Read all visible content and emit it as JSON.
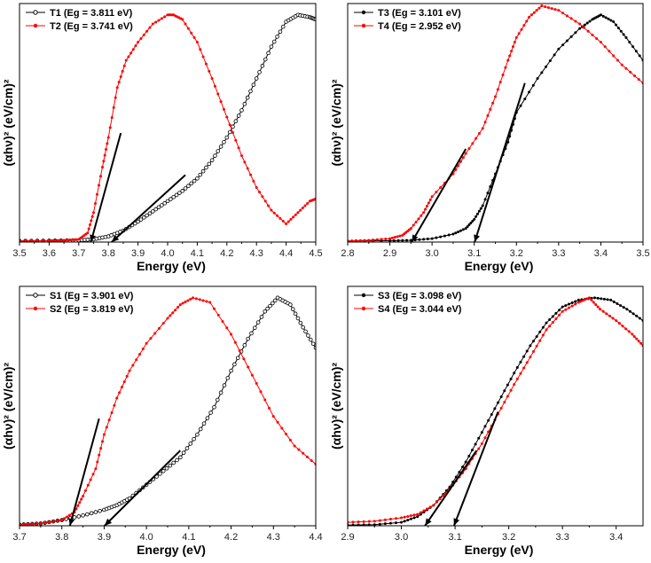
{
  "chart_data": [
    {
      "type": "scatter",
      "xlabel": "Energy (eV)",
      "ylabel": "(αhν)² (eV/cm)²",
      "xlim": [
        3.5,
        4.5
      ],
      "xticks": [
        3.5,
        3.6,
        3.7,
        3.8,
        3.9,
        4.0,
        4.1,
        4.2,
        4.3,
        4.4,
        4.5
      ],
      "xtick_labels": [
        "3.5",
        "3.6",
        "3.7",
        "3.8",
        "3.9",
        "4.0",
        "4.1",
        "4.2",
        "4.3",
        "4.4",
        "4.5"
      ],
      "ylim": [
        0,
        1.05
      ],
      "legend_position": "top-left",
      "series": [
        {
          "name": "T1 (Eg = 3.811 eV)",
          "color": "#000000",
          "marker": "open-circle",
          "x": [
            3.5,
            3.6,
            3.7,
            3.75,
            3.8,
            3.85,
            3.9,
            3.95,
            4.0,
            4.05,
            4.1,
            4.15,
            4.2,
            4.25,
            4.3,
            4.35,
            4.4,
            4.44,
            4.48,
            4.5
          ],
          "y": [
            0.005,
            0.006,
            0.008,
            0.012,
            0.025,
            0.05,
            0.09,
            0.135,
            0.18,
            0.225,
            0.28,
            0.36,
            0.46,
            0.58,
            0.72,
            0.86,
            0.97,
            1.0,
            0.99,
            0.98
          ]
        },
        {
          "name": "T2 (Eg = 3.741 eV)",
          "color": "#ff0000",
          "marker": "dot",
          "x": [
            3.5,
            3.6,
            3.65,
            3.7,
            3.73,
            3.75,
            3.78,
            3.8,
            3.83,
            3.86,
            3.9,
            3.95,
            4.0,
            4.02,
            4.05,
            4.1,
            4.15,
            4.2,
            4.25,
            4.3,
            4.35,
            4.4,
            4.44,
            4.48,
            4.5
          ],
          "y": [
            0.005,
            0.006,
            0.008,
            0.012,
            0.04,
            0.13,
            0.33,
            0.46,
            0.68,
            0.8,
            0.88,
            0.96,
            1.0,
            1.0,
            0.98,
            0.88,
            0.72,
            0.55,
            0.38,
            0.24,
            0.14,
            0.08,
            0.13,
            0.18,
            0.19
          ]
        }
      ],
      "fit_lines": [
        {
          "x1": 3.811,
          "y1": 0,
          "x2": 4.06,
          "y2": 0.295,
          "color": "#000000"
        },
        {
          "x1": 3.741,
          "y1": 0,
          "x2": 3.842,
          "y2": 0.48,
          "color": "#000000"
        }
      ]
    },
    {
      "type": "scatter",
      "xlabel": "Energy (eV)",
      "ylabel": "(αhν)² (eV/cm)²",
      "xlim": [
        2.8,
        3.5
      ],
      "xticks": [
        2.8,
        2.9,
        3.0,
        3.1,
        3.2,
        3.3,
        3.4,
        3.5
      ],
      "xtick_labels": [
        "2.8",
        "2.9",
        "3.0",
        "3.1",
        "3.2",
        "3.3",
        "3.4",
        "3.5"
      ],
      "ylim": [
        0,
        1.05
      ],
      "legend_position": "top-left",
      "series": [
        {
          "name": "T3 (Eg = 3.101 eV)",
          "color": "#000000",
          "marker": "dot",
          "x": [
            2.8,
            2.9,
            2.95,
            3.0,
            3.05,
            3.08,
            3.1,
            3.12,
            3.15,
            3.18,
            3.2,
            3.25,
            3.3,
            3.35,
            3.38,
            3.4,
            3.43,
            3.46,
            3.5
          ],
          "y": [
            0.005,
            0.006,
            0.008,
            0.015,
            0.035,
            0.06,
            0.1,
            0.16,
            0.3,
            0.44,
            0.57,
            0.72,
            0.85,
            0.94,
            0.98,
            1.0,
            0.97,
            0.9,
            0.8
          ]
        },
        {
          "name": "T4 (Eg = 2.952 eV)",
          "color": "#ff0000",
          "marker": "dot",
          "x": [
            2.8,
            2.85,
            2.9,
            2.93,
            2.95,
            2.98,
            3.0,
            3.05,
            3.08,
            3.12,
            3.15,
            3.18,
            3.2,
            3.23,
            3.26,
            3.3,
            3.35,
            3.4,
            3.45,
            3.5
          ],
          "y": [
            0.005,
            0.008,
            0.015,
            0.03,
            0.06,
            0.13,
            0.2,
            0.3,
            0.39,
            0.5,
            0.64,
            0.8,
            0.9,
            0.99,
            1.04,
            1.02,
            0.96,
            0.88,
            0.78,
            0.7
          ]
        }
      ],
      "fit_lines": [
        {
          "x1": 3.101,
          "y1": 0,
          "x2": 3.22,
          "y2": 0.7,
          "color": "#000000"
        },
        {
          "x1": 2.952,
          "y1": 0,
          "x2": 3.08,
          "y2": 0.41,
          "color": "#000000"
        }
      ]
    },
    {
      "type": "scatter",
      "xlabel": "Energy (eV)",
      "ylabel": "(αhν)² (eV/cm)²",
      "xlim": [
        3.7,
        4.4
      ],
      "xticks": [
        3.7,
        3.8,
        3.9,
        4.0,
        4.1,
        4.2,
        4.3,
        4.4
      ],
      "xtick_labels": [
        "3.7",
        "3.8",
        "3.9",
        "4.0",
        "4.1",
        "4.2",
        "4.3",
        "4.4"
      ],
      "ylim": [
        0,
        1.05
      ],
      "legend_position": "top-left",
      "series": [
        {
          "name": "S1 (Eg = 3.901 eV)",
          "color": "#000000",
          "marker": "open-circle",
          "x": [
            3.7,
            3.75,
            3.8,
            3.85,
            3.9,
            3.93,
            3.96,
            4.0,
            4.04,
            4.08,
            4.12,
            4.16,
            4.2,
            4.24,
            4.28,
            4.31,
            4.34,
            4.37,
            4.4
          ],
          "y": [
            0.005,
            0.01,
            0.025,
            0.045,
            0.07,
            0.09,
            0.12,
            0.18,
            0.24,
            0.3,
            0.4,
            0.52,
            0.68,
            0.82,
            0.94,
            1.0,
            0.97,
            0.87,
            0.78
          ]
        },
        {
          "name": "S2 (Eg = 3.819 eV)",
          "color": "#ff0000",
          "marker": "dot",
          "x": [
            3.7,
            3.75,
            3.8,
            3.83,
            3.85,
            3.88,
            3.9,
            3.93,
            3.96,
            4.0,
            4.05,
            4.08,
            4.11,
            4.15,
            4.2,
            4.25,
            4.3,
            4.35,
            4.4
          ],
          "y": [
            0.005,
            0.01,
            0.025,
            0.06,
            0.13,
            0.25,
            0.4,
            0.56,
            0.68,
            0.8,
            0.91,
            0.97,
            1.0,
            0.98,
            0.84,
            0.66,
            0.48,
            0.35,
            0.27
          ]
        }
      ],
      "fit_lines": [
        {
          "x1": 3.901,
          "y1": 0,
          "x2": 4.08,
          "y2": 0.33,
          "color": "#000000"
        },
        {
          "x1": 3.819,
          "y1": 0,
          "x2": 3.888,
          "y2": 0.47,
          "color": "#000000"
        }
      ]
    },
    {
      "type": "scatter",
      "xlabel": "Energy (eV)",
      "ylabel": "(αhν)² (eV/cm)²",
      "xlim": [
        2.9,
        3.45
      ],
      "xticks": [
        2.9,
        3.0,
        3.1,
        3.2,
        3.3,
        3.4
      ],
      "xtick_labels": [
        "2.9",
        "3.0",
        "3.1",
        "3.2",
        "3.3",
        "3.4"
      ],
      "ylim": [
        0,
        1.05
      ],
      "legend_position": "top-left",
      "series": [
        {
          "name": "S3 (Eg = 3.098 eV)",
          "color": "#000000",
          "marker": "dot",
          "x": [
            2.9,
            2.95,
            3.0,
            3.03,
            3.06,
            3.09,
            3.12,
            3.15,
            3.18,
            3.21,
            3.24,
            3.27,
            3.3,
            3.33,
            3.36,
            3.39,
            3.42,
            3.45
          ],
          "y": [
            0.003,
            0.005,
            0.015,
            0.04,
            0.09,
            0.17,
            0.28,
            0.41,
            0.54,
            0.67,
            0.79,
            0.89,
            0.96,
            0.99,
            1.0,
            0.99,
            0.95,
            0.9
          ]
        },
        {
          "name": "S4 (Eg = 3.044 eV)",
          "color": "#ff0000",
          "marker": "dot",
          "x": [
            2.9,
            2.95,
            3.0,
            3.03,
            3.06,
            3.09,
            3.12,
            3.15,
            3.18,
            3.21,
            3.24,
            3.27,
            3.3,
            3.33,
            3.35,
            3.37,
            3.4,
            3.43,
            3.45
          ],
          "y": [
            0.015,
            0.02,
            0.035,
            0.05,
            0.09,
            0.16,
            0.25,
            0.36,
            0.49,
            0.62,
            0.74,
            0.86,
            0.94,
            0.98,
            1.0,
            0.95,
            0.9,
            0.84,
            0.79
          ]
        }
      ],
      "fit_lines": [
        {
          "x1": 3.098,
          "y1": 0,
          "x2": 3.18,
          "y2": 0.5,
          "color": "#000000"
        },
        {
          "x1": 3.044,
          "y1": 0,
          "x2": 3.14,
          "y2": 0.33,
          "color": "#000000"
        }
      ]
    }
  ]
}
